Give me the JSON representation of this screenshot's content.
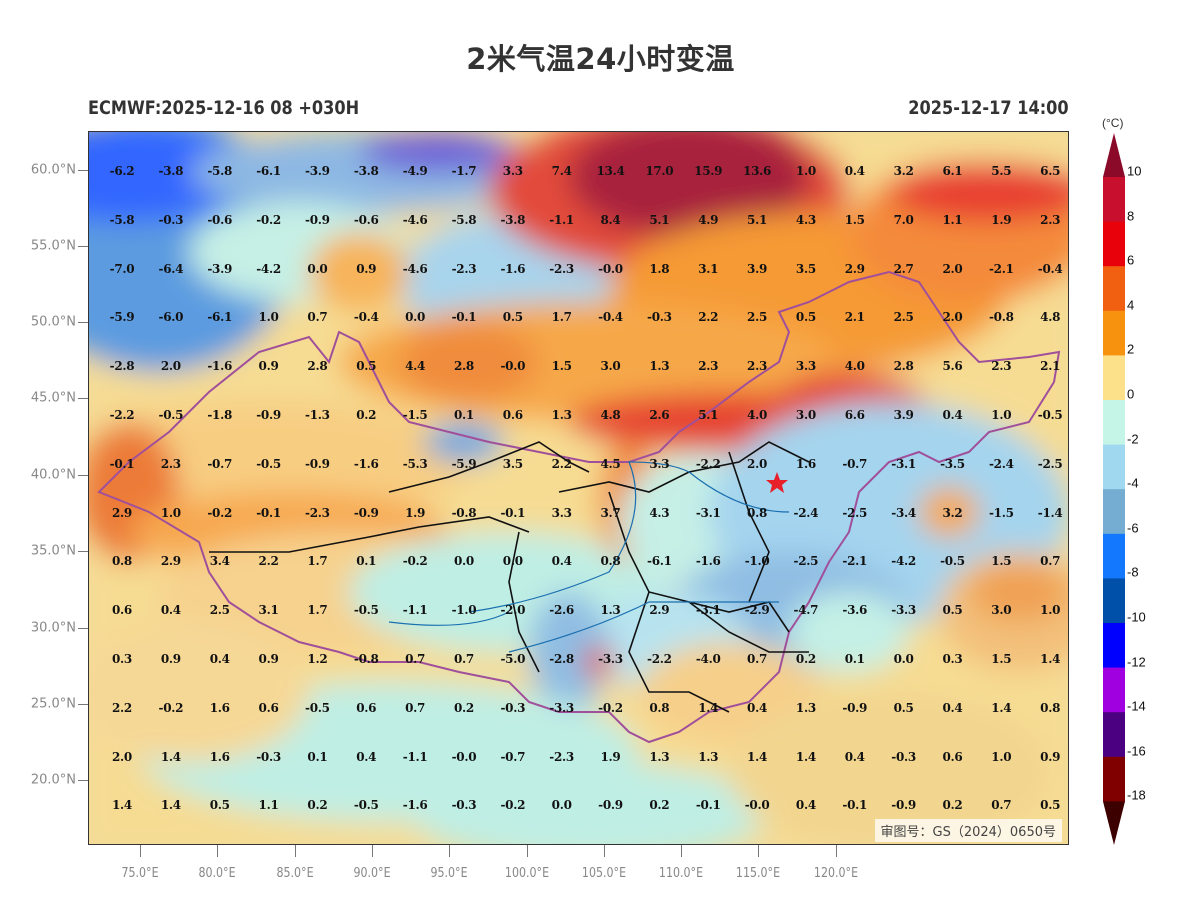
{
  "header": {
    "title": "2米气温24小时变温",
    "model_run": "ECMWF:2025-12-16 08 +030H",
    "valid_time": "2025-12-17 14:00"
  },
  "map": {
    "approval_number": "审图号：GS（2024）0650号",
    "marker": "red-star (Beijing)"
  },
  "colorbar": {
    "unit": "(°C)",
    "levels": [
      "10",
      "8",
      "6",
      "4",
      "2",
      "0",
      "-2",
      "-4",
      "-6",
      "-8",
      "-10",
      "-12",
      "-14",
      "-16",
      "-18"
    ],
    "colors": [
      "#a50026",
      "#c8102e",
      "#e8000b",
      "#f06010",
      "#f7920f",
      "#fde08a",
      "#c4f5e6",
      "#a0d8ef",
      "#74add1",
      "#1478ff",
      "#0050aa",
      "#0000ff",
      "#a000e0",
      "#4b0082",
      "#800000",
      "#3d0000"
    ]
  },
  "chart_data": {
    "type": "heatmap",
    "title": "2米气温24小时变温",
    "subtitle_left": "ECMWF:2025-12-16 08 +030H",
    "subtitle_right": "2025-12-17 14:00",
    "unit": "°C",
    "x_ticks": [
      "75.0°E",
      "80.0°E",
      "85.0°E",
      "90.0°E",
      "95.0°E",
      "100.0°E",
      "105.0°E",
      "110.0°E",
      "115.0°E",
      "120.0°E"
    ],
    "y_ticks": [
      "60.0°N",
      "55.0°N",
      "50.0°N",
      "45.0°N",
      "40.0°N",
      "35.0°N",
      "30.0°N",
      "25.0°N",
      "20.0°N"
    ],
    "grid_values": [
      [
        "-6.2",
        "-3.8",
        "-5.8",
        "-6.1",
        "-3.9",
        "-3.8",
        "-4.9",
        "-1.7",
        "3.3",
        "7.4",
        "13.4",
        "17.0",
        "15.9",
        "13.6",
        "1.0",
        "0.4",
        "3.2",
        "6.1",
        "5.5",
        "6.5"
      ],
      [
        "-5.8",
        "-0.3",
        "-0.6",
        "-0.2",
        "-0.9",
        "-0.6",
        "-4.6",
        "-5.8",
        "-3.8",
        "-1.1",
        "8.4",
        "5.1",
        "4.9",
        "5.1",
        "4.3",
        "1.5",
        "7.0",
        "1.1",
        "1.9",
        "2.3"
      ],
      [
        "-7.0",
        "-6.4",
        "-3.9",
        "-4.2",
        "0.0",
        "0.9",
        "-4.6",
        "-2.3",
        "-1.6",
        "-2.3",
        "-0.0",
        "1.8",
        "3.1",
        "3.9",
        "3.5",
        "2.9",
        "2.7",
        "2.0",
        "-2.1",
        "-0.4"
      ],
      [
        "-5.9",
        "-6.0",
        "-6.1",
        "1.0",
        "0.7",
        "-0.4",
        "0.0",
        "-0.1",
        "0.5",
        "1.7",
        "-0.4",
        "-0.3",
        "2.2",
        "2.5",
        "0.5",
        "2.1",
        "2.5",
        "2.0",
        "-0.8",
        "4.8"
      ],
      [
        "-2.8",
        "2.0",
        "-1.6",
        "0.9",
        "2.8",
        "0.5",
        "4.4",
        "2.8",
        "-0.0",
        "1.5",
        "3.0",
        "1.3",
        "2.3",
        "2.3",
        "3.3",
        "4.0",
        "2.8",
        "5.6",
        "2.3",
        "2.1"
      ],
      [
        "-2.2",
        "-0.5",
        "-1.8",
        "-0.9",
        "-1.3",
        "0.2",
        "-1.5",
        "0.1",
        "0.6",
        "1.3",
        "4.8",
        "2.6",
        "5.1",
        "4.0",
        "3.0",
        "6.6",
        "3.9",
        "0.4",
        "1.0",
        "-0.5"
      ],
      [
        "-0.1",
        "2.3",
        "-0.7",
        "-0.5",
        "-0.9",
        "-1.6",
        "-5.3",
        "-5.9",
        "3.5",
        "2.2",
        "4.5",
        "3.3",
        "-2.2",
        "2.0",
        "1.6",
        "-0.7",
        "-3.1",
        "-3.5",
        "-2.4",
        "-2.5"
      ],
      [
        "2.9",
        "1.0",
        "-0.2",
        "-0.1",
        "-2.3",
        "-0.9",
        "1.9",
        "-0.8",
        "-0.1",
        "3.3",
        "3.7",
        "4.3",
        "-3.1",
        "0.8",
        "-2.4",
        "-2.5",
        "-3.4",
        "3.2",
        "-1.5",
        "-1.4"
      ],
      [
        "0.8",
        "2.9",
        "3.4",
        "2.2",
        "1.7",
        "0.1",
        "-0.2",
        "0.0",
        "0.0",
        "0.4",
        "0.8",
        "-6.1",
        "-1.6",
        "-1.0",
        "-2.5",
        "-2.1",
        "-4.2",
        "-0.5",
        "1.5",
        "0.7"
      ],
      [
        "0.6",
        "0.4",
        "2.5",
        "3.1",
        "1.7",
        "-0.5",
        "-1.1",
        "-1.0",
        "-2.0",
        "-2.6",
        "1.3",
        "2.9",
        "-3.1",
        "-2.9",
        "-4.7",
        "-3.6",
        "-3.3",
        "0.5",
        "3.0",
        "1.0"
      ],
      [
        "0.3",
        "0.9",
        "0.4",
        "0.9",
        "1.2",
        "-0.8",
        "0.7",
        "0.7",
        "-5.0",
        "-2.8",
        "-3.3",
        "-2.2",
        "-4.0",
        "0.7",
        "0.2",
        "0.1",
        "0.0",
        "0.3",
        "1.5",
        "1.4"
      ],
      [
        "2.2",
        "-0.2",
        "1.6",
        "0.6",
        "-0.5",
        "0.6",
        "0.7",
        "0.2",
        "-0.3",
        "-3.3",
        "-0.2",
        "0.8",
        "1.4",
        "0.4",
        "1.3",
        "-0.9",
        "0.5",
        "0.4",
        "1.4",
        "0.8"
      ],
      [
        "2.0",
        "1.4",
        "1.6",
        "-0.3",
        "0.1",
        "0.4",
        "-1.1",
        "-0.0",
        "-0.7",
        "-2.3",
        "1.9",
        "1.3",
        "1.3",
        "1.4",
        "1.4",
        "0.4",
        "-0.3",
        "0.6",
        "1.0",
        "0.9"
      ],
      [
        "1.4",
        "1.4",
        "0.5",
        "1.1",
        "0.2",
        "-0.5",
        "-1.6",
        "-0.3",
        "-0.2",
        "0.0",
        "-0.9",
        "0.2",
        "-0.1",
        "-0.0",
        "0.4",
        "-0.1",
        "-0.9",
        "0.2",
        "0.7",
        "0.5"
      ]
    ],
    "legend": {
      "levels": [
        10,
        8,
        6,
        4,
        2,
        0,
        -2,
        -4,
        -6,
        -8,
        -10,
        -12,
        -14,
        -16,
        -18
      ],
      "extend": "both",
      "position": "right"
    }
  }
}
